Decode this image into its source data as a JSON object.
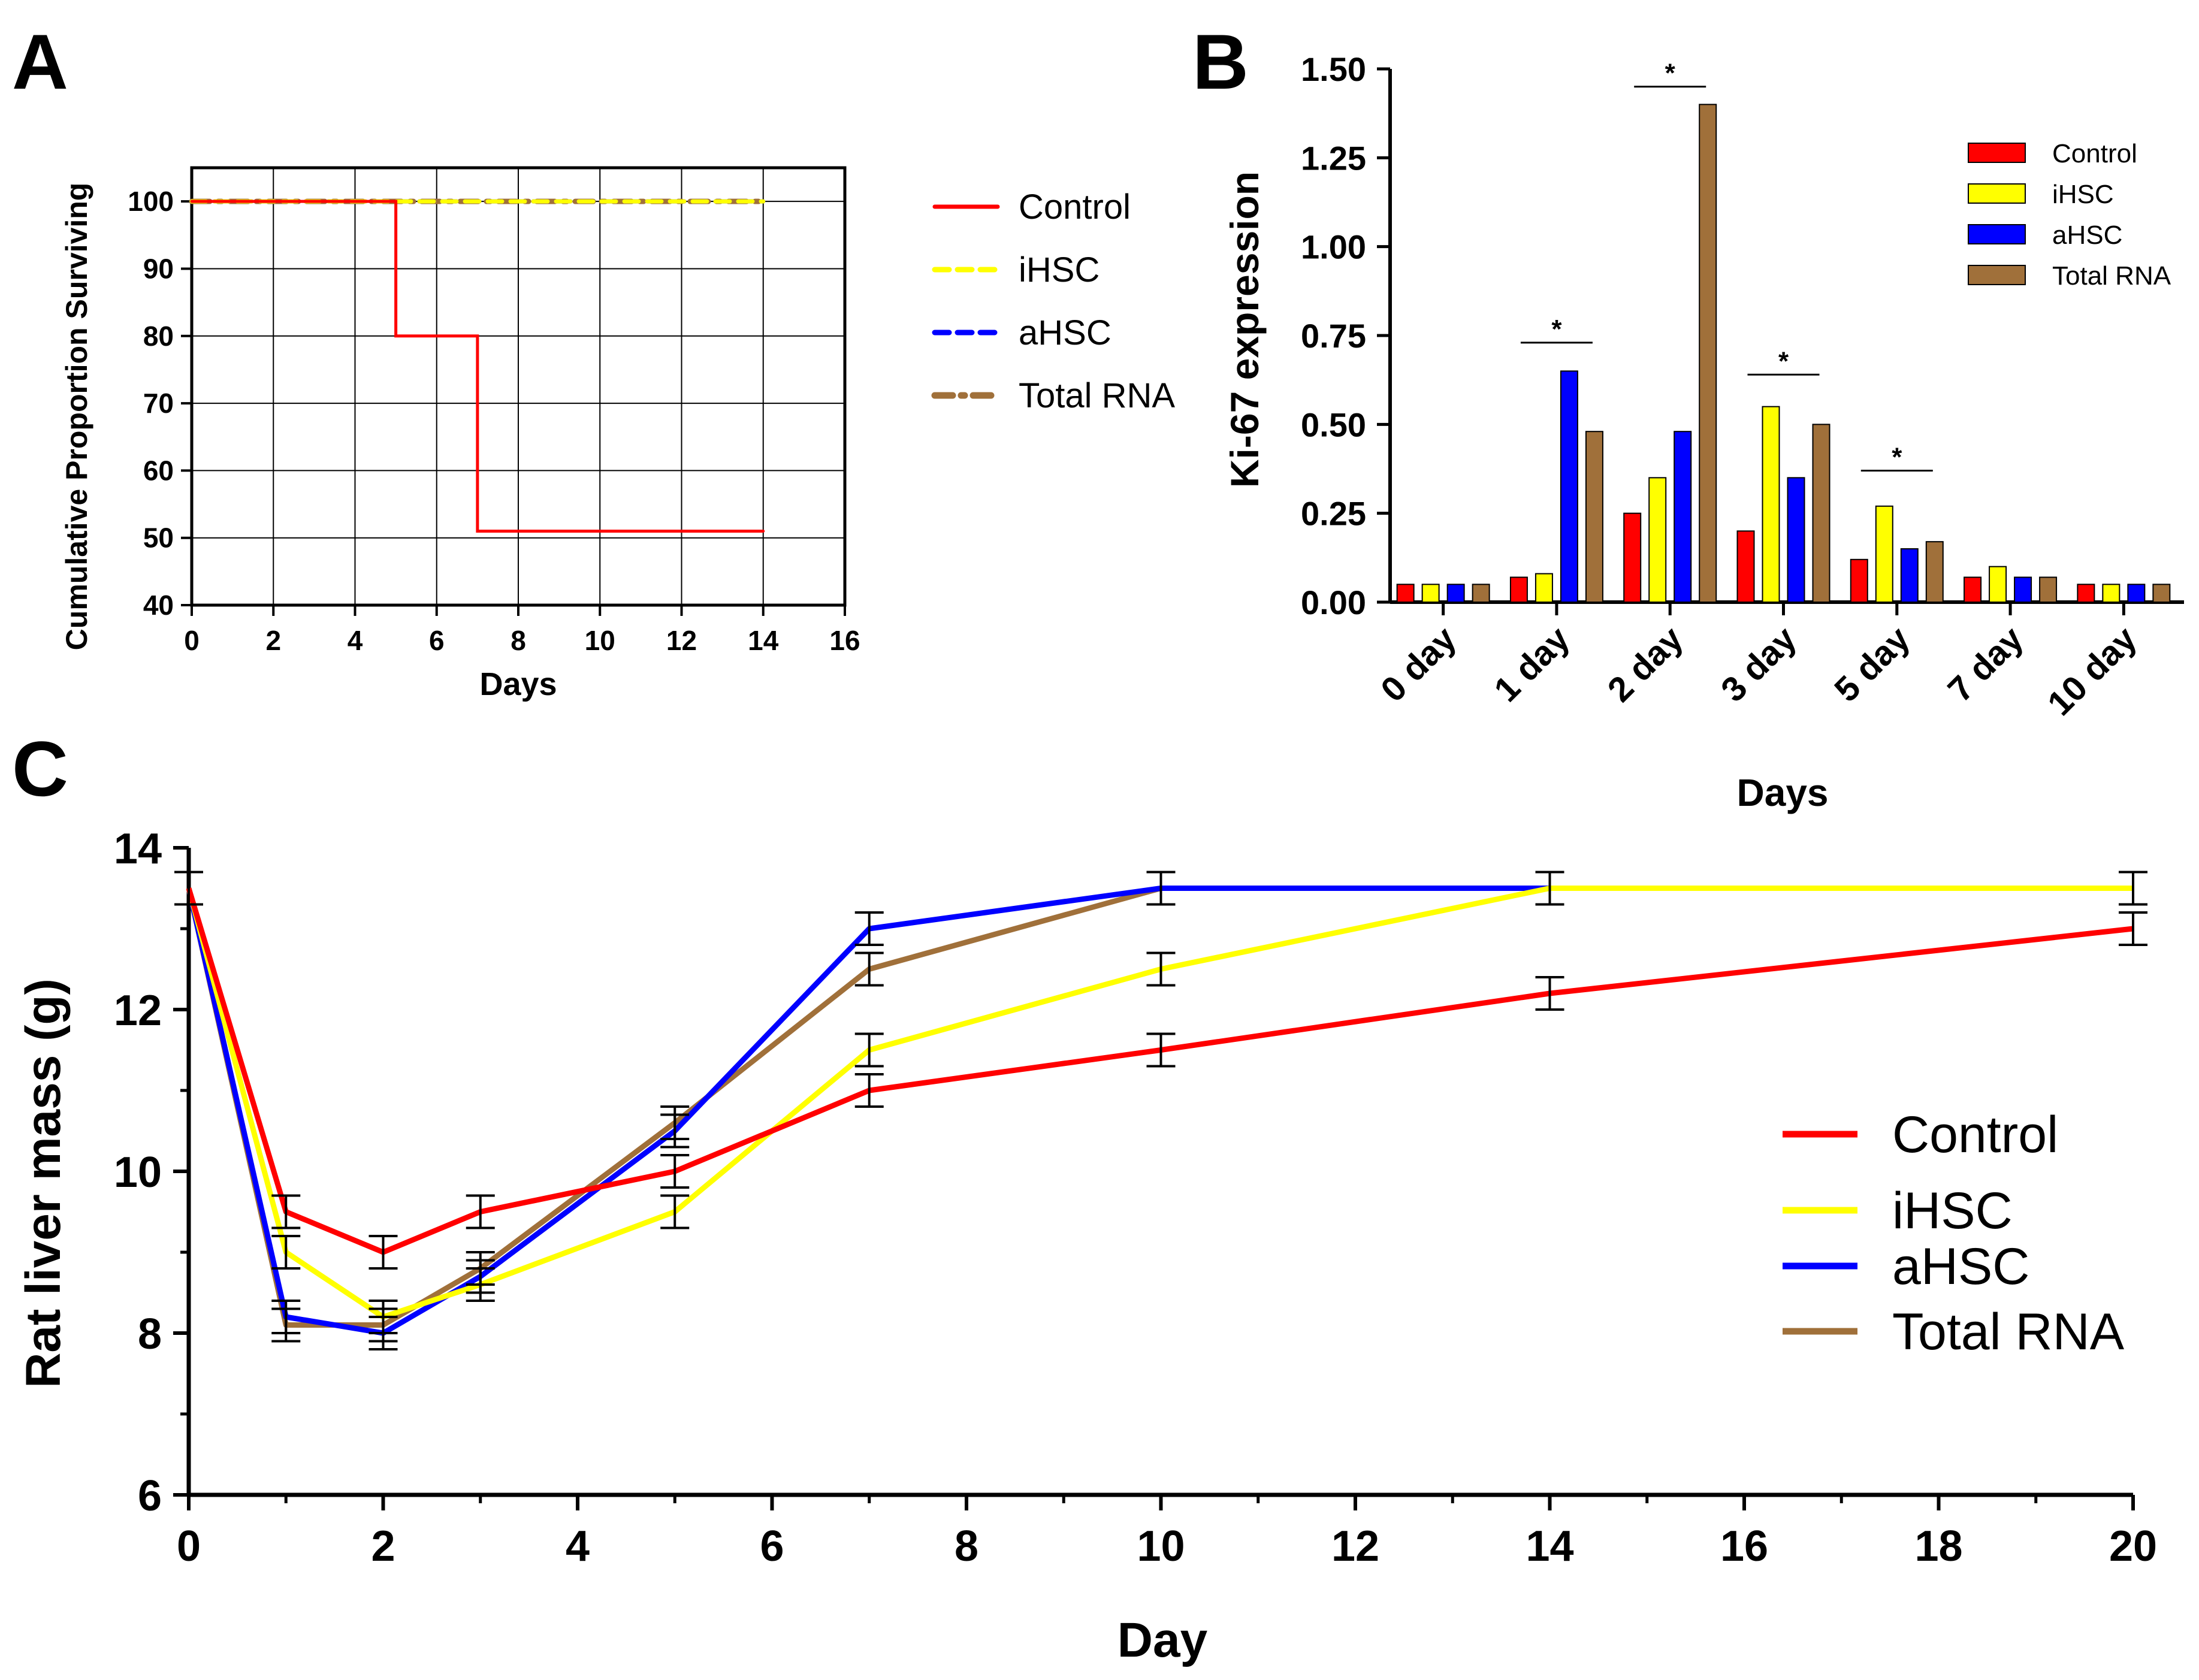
{
  "colors": {
    "control": "#ff0000",
    "ihsc": "#ffff00",
    "ahsc": "#0000ff",
    "total_rna": "#a0703a",
    "axis": "#000000",
    "grid": "#000000"
  },
  "chart_data": [
    {
      "panel": "A",
      "type": "line",
      "ylabel": "Cumulative Proportion Surviving",
      "xlabel": "Days",
      "xlim": [
        0,
        16
      ],
      "ylim": [
        40,
        105
      ],
      "xticks": [
        0,
        2,
        4,
        6,
        8,
        10,
        12,
        14,
        16
      ],
      "yticks": [
        40,
        50,
        60,
        70,
        80,
        90,
        100
      ],
      "grid": true,
      "legend_position": "right",
      "series": [
        {
          "name": "Control",
          "key": "control",
          "style": "solid",
          "x": [
            0,
            5,
            5,
            7,
            7,
            14
          ],
          "y": [
            100,
            100,
            80,
            80,
            51,
            51
          ]
        },
        {
          "name": "iHSC",
          "key": "ihsc",
          "style": "dashed",
          "x": [
            0,
            14
          ],
          "y": [
            100,
            100
          ]
        },
        {
          "name": "aHSC",
          "key": "ahsc",
          "style": "dashed",
          "x": [
            0,
            14
          ],
          "y": [
            100,
            100
          ]
        },
        {
          "name": "Total RNA",
          "key": "total_rna",
          "style": "dash-dot",
          "x": [
            0,
            14
          ],
          "y": [
            100,
            100
          ]
        }
      ]
    },
    {
      "panel": "B",
      "type": "bar",
      "ylabel": "Ki-67 expression",
      "xlabel": "Days",
      "ylim": [
        0,
        1.5
      ],
      "yticks": [
        "0.00",
        "0.25",
        "0.50",
        "0.75",
        "1.00",
        "1.25",
        "1.50"
      ],
      "categories": [
        "0 day",
        "1 day",
        "2 day",
        "3 day",
        "5 day",
        "7 day",
        "10 day"
      ],
      "legend_position": "top-right",
      "series": [
        {
          "name": "Control",
          "key": "control",
          "values": [
            0.05,
            0.07,
            0.25,
            0.2,
            0.12,
            0.07,
            0.05
          ]
        },
        {
          "name": "iHSC",
          "key": "ihsc",
          "values": [
            0.05,
            0.08,
            0.35,
            0.55,
            0.27,
            0.1,
            0.05
          ]
        },
        {
          "name": "aHSC",
          "key": "ahsc",
          "values": [
            0.05,
            0.65,
            0.48,
            0.35,
            0.15,
            0.07,
            0.05
          ]
        },
        {
          "name": "Total RNA",
          "key": "total_rna",
          "values": [
            0.05,
            0.48,
            1.4,
            0.5,
            0.17,
            0.07,
            0.05
          ]
        }
      ],
      "annotations": [
        {
          "category": "1 day",
          "text": "*",
          "y": 0.73
        },
        {
          "category": "2 day",
          "text": "*",
          "y": 1.45
        },
        {
          "category": "3 day",
          "text": "*",
          "y": 0.64
        },
        {
          "category": "5 day",
          "text": "*",
          "y": 0.37
        }
      ]
    },
    {
      "panel": "C",
      "type": "line",
      "ylabel": "Rat liver mass (g)",
      "xlabel": "Day",
      "xlim": [
        0,
        20
      ],
      "ylim": [
        6,
        14
      ],
      "xticks": [
        0,
        2,
        4,
        6,
        8,
        10,
        12,
        14,
        16,
        18,
        20
      ],
      "yticks": [
        6,
        8,
        10,
        12,
        14
      ],
      "grid": false,
      "legend_position": "right",
      "series": [
        {
          "name": "Control",
          "key": "control",
          "x": [
            0,
            1,
            2,
            3,
            5,
            7,
            10,
            14,
            20
          ],
          "y": [
            13.5,
            9.5,
            9.0,
            9.5,
            10.0,
            11.0,
            11.5,
            12.2,
            13.0
          ],
          "err": [
            0.2,
            0.2,
            0.2,
            0.2,
            0.2,
            0.2,
            0.2,
            0.2,
            0.2
          ]
        },
        {
          "name": "iHSC",
          "key": "ihsc",
          "x": [
            0,
            1,
            2,
            3,
            5,
            7,
            10,
            14,
            20
          ],
          "y": [
            13.5,
            9.0,
            8.2,
            8.6,
            9.5,
            11.5,
            12.5,
            13.5,
            13.5
          ],
          "err": [
            0.2,
            0.2,
            0.2,
            0.2,
            0.2,
            0.2,
            0.2,
            0.2,
            0.2
          ]
        },
        {
          "name": "aHSC",
          "key": "ahsc",
          "x": [
            0,
            1,
            2,
            3,
            5,
            7,
            10,
            14
          ],
          "y": [
            13.5,
            8.2,
            8.0,
            8.7,
            10.5,
            13.0,
            13.5,
            13.5
          ],
          "err": [
            0.2,
            0.2,
            0.2,
            0.2,
            0.2,
            0.2,
            0.2,
            0.2
          ]
        },
        {
          "name": "Total RNA",
          "key": "total_rna",
          "x": [
            0,
            1,
            2,
            3,
            5,
            7,
            10
          ],
          "y": [
            13.5,
            8.1,
            8.1,
            8.8,
            10.6,
            12.5,
            13.5
          ],
          "err": [
            0.2,
            0.2,
            0.2,
            0.2,
            0.2,
            0.2,
            0.2
          ]
        }
      ]
    }
  ]
}
